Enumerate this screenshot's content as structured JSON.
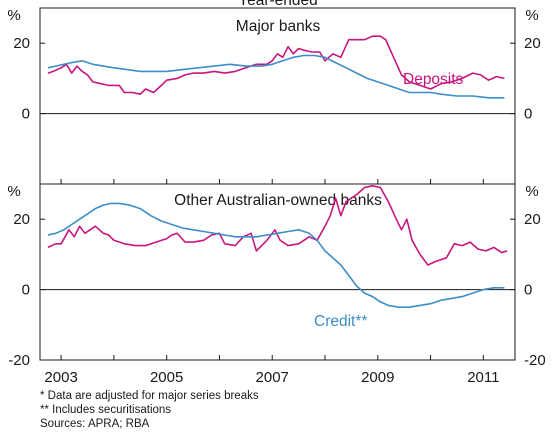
{
  "chart_data": [
    {
      "type": "line",
      "title": "Major banks",
      "header_text": "Year-ended",
      "ylabel": "%",
      "ylim": [
        -20,
        30
      ],
      "yticks": [
        0,
        20
      ],
      "xlim": [
        2002.6,
        2011.6
      ],
      "xticks": [
        2003,
        2005,
        2007,
        2009,
        2011
      ],
      "series": [
        {
          "name": "Deposits",
          "color": "#c8157f",
          "points": [
            [
              2002.75,
              11.5
            ],
            [
              2002.85,
              12
            ],
            [
              2003.0,
              13
            ],
            [
              2003.1,
              14
            ],
            [
              2003.2,
              11.5
            ],
            [
              2003.3,
              13.5
            ],
            [
              2003.4,
              12
            ],
            [
              2003.5,
              11
            ],
            [
              2003.6,
              9
            ],
            [
              2003.75,
              8.5
            ],
            [
              2003.9,
              8
            ],
            [
              2004.0,
              8
            ],
            [
              2004.1,
              8
            ],
            [
              2004.2,
              6
            ],
            [
              2004.35,
              6
            ],
            [
              2004.5,
              5.5
            ],
            [
              2004.6,
              7
            ],
            [
              2004.75,
              6
            ],
            [
              2004.9,
              8
            ],
            [
              2005.0,
              9.5
            ],
            [
              2005.2,
              10
            ],
            [
              2005.35,
              11
            ],
            [
              2005.5,
              11.5
            ],
            [
              2005.7,
              11.5
            ],
            [
              2005.9,
              12
            ],
            [
              2006.1,
              11.5
            ],
            [
              2006.3,
              12
            ],
            [
              2006.5,
              13
            ],
            [
              2006.7,
              14
            ],
            [
              2006.9,
              14
            ],
            [
              2007.0,
              15
            ],
            [
              2007.1,
              17
            ],
            [
              2007.2,
              16
            ],
            [
              2007.3,
              19
            ],
            [
              2007.4,
              17
            ],
            [
              2007.5,
              18.5
            ],
            [
              2007.6,
              18
            ],
            [
              2007.75,
              17.5
            ],
            [
              2007.9,
              17.5
            ],
            [
              2008.0,
              15
            ],
            [
              2008.15,
              17
            ],
            [
              2008.3,
              16
            ],
            [
              2008.45,
              21
            ],
            [
              2008.6,
              21
            ],
            [
              2008.75,
              21
            ],
            [
              2008.9,
              22
            ],
            [
              2009.05,
              22
            ],
            [
              2009.15,
              21
            ],
            [
              2009.3,
              16
            ],
            [
              2009.45,
              11
            ],
            [
              2009.6,
              9
            ],
            [
              2009.8,
              8
            ],
            [
              2010.0,
              7
            ],
            [
              2010.2,
              8.5
            ],
            [
              2010.4,
              9
            ],
            [
              2010.6,
              10
            ],
            [
              2010.8,
              11.5
            ],
            [
              2010.95,
              11
            ],
            [
              2011.1,
              9.5
            ],
            [
              2011.25,
              10.5
            ],
            [
              2011.4,
              10
            ]
          ]
        },
        {
          "name": "Credit",
          "color": "#3c8dc8",
          "points": [
            [
              2002.75,
              13
            ],
            [
              2002.9,
              13.5
            ],
            [
              2003.05,
              14
            ],
            [
              2003.2,
              14.5
            ],
            [
              2003.4,
              15
            ],
            [
              2003.6,
              14
            ],
            [
              2003.8,
              13.5
            ],
            [
              2004.0,
              13
            ],
            [
              2004.25,
              12.5
            ],
            [
              2004.5,
              12
            ],
            [
              2004.75,
              12
            ],
            [
              2005.0,
              12
            ],
            [
              2005.3,
              12.5
            ],
            [
              2005.6,
              13
            ],
            [
              2005.9,
              13.5
            ],
            [
              2006.2,
              14
            ],
            [
              2006.5,
              13.5
            ],
            [
              2006.8,
              13.5
            ],
            [
              2007.0,
              14
            ],
            [
              2007.2,
              15
            ],
            [
              2007.4,
              16
            ],
            [
              2007.6,
              16.5
            ],
            [
              2007.8,
              16.5
            ],
            [
              2008.0,
              16
            ],
            [
              2008.2,
              14.5
            ],
            [
              2008.4,
              13
            ],
            [
              2008.6,
              11.5
            ],
            [
              2008.8,
              10
            ],
            [
              2009.0,
              9
            ],
            [
              2009.2,
              8
            ],
            [
              2009.4,
              7
            ],
            [
              2009.6,
              6
            ],
            [
              2009.8,
              6
            ],
            [
              2010.0,
              6
            ],
            [
              2010.2,
              5.5
            ],
            [
              2010.5,
              5
            ],
            [
              2010.8,
              5
            ],
            [
              2011.1,
              4.5
            ],
            [
              2011.4,
              4.5
            ]
          ]
        }
      ]
    },
    {
      "type": "line",
      "title": "Other Australian-owned banks",
      "ylabel": "%",
      "ylim": [
        -20,
        30
      ],
      "yticks": [
        -20,
        0,
        20
      ],
      "xlim": [
        2002.6,
        2011.6
      ],
      "xticks": [
        2003,
        2005,
        2007,
        2009,
        2011
      ],
      "series": [
        {
          "name": "Deposits",
          "color": "#c8157f",
          "points": [
            [
              2002.75,
              12
            ],
            [
              2002.9,
              13
            ],
            [
              2003.0,
              13
            ],
            [
              2003.15,
              17
            ],
            [
              2003.25,
              15
            ],
            [
              2003.35,
              18
            ],
            [
              2003.45,
              16
            ],
            [
              2003.55,
              17
            ],
            [
              2003.65,
              18
            ],
            [
              2003.8,
              16
            ],
            [
              2003.9,
              15.5
            ],
            [
              2004.0,
              14
            ],
            [
              2004.2,
              13
            ],
            [
              2004.4,
              12.5
            ],
            [
              2004.6,
              12.5
            ],
            [
              2004.8,
              13.5
            ],
            [
              2005.0,
              14.5
            ],
            [
              2005.1,
              15.5
            ],
            [
              2005.2,
              16
            ],
            [
              2005.35,
              13.5
            ],
            [
              2005.5,
              13.5
            ],
            [
              2005.7,
              14
            ],
            [
              2005.85,
              15.5
            ],
            [
              2006.0,
              16
            ],
            [
              2006.1,
              13
            ],
            [
              2006.3,
              12.5
            ],
            [
              2006.45,
              15
            ],
            [
              2006.6,
              16
            ],
            [
              2006.7,
              11
            ],
            [
              2006.9,
              14
            ],
            [
              2007.05,
              17
            ],
            [
              2007.15,
              14
            ],
            [
              2007.3,
              12.5
            ],
            [
              2007.5,
              13
            ],
            [
              2007.7,
              15
            ],
            [
              2007.85,
              14
            ],
            [
              2008.0,
              18
            ],
            [
              2008.1,
              21
            ],
            [
              2008.2,
              26
            ],
            [
              2008.3,
              21
            ],
            [
              2008.4,
              25
            ],
            [
              2008.5,
              26
            ],
            [
              2008.6,
              27
            ],
            [
              2008.75,
              29
            ],
            [
              2008.9,
              29.5
            ],
            [
              2009.05,
              29
            ],
            [
              2009.2,
              25
            ],
            [
              2009.35,
              20
            ],
            [
              2009.45,
              17
            ],
            [
              2009.55,
              20
            ],
            [
              2009.65,
              14
            ],
            [
              2009.8,
              10
            ],
            [
              2009.95,
              7
            ],
            [
              2010.1,
              8
            ],
            [
              2010.3,
              9
            ],
            [
              2010.45,
              13
            ],
            [
              2010.6,
              12.5
            ],
            [
              2010.75,
              13.5
            ],
            [
              2010.9,
              11.5
            ],
            [
              2011.05,
              11
            ],
            [
              2011.2,
              12
            ],
            [
              2011.35,
              10.5
            ],
            [
              2011.45,
              11
            ]
          ]
        },
        {
          "name": "Credit",
          "color": "#3c8dc8",
          "points": [
            [
              2002.75,
              15.5
            ],
            [
              2002.9,
              16
            ],
            [
              2003.05,
              17
            ],
            [
              2003.2,
              18.5
            ],
            [
              2003.35,
              20
            ],
            [
              2003.5,
              21.5
            ],
            [
              2003.65,
              23
            ],
            [
              2003.8,
              24
            ],
            [
              2003.95,
              24.5
            ],
            [
              2004.1,
              24.5
            ],
            [
              2004.3,
              24
            ],
            [
              2004.5,
              23
            ],
            [
              2004.7,
              21
            ],
            [
              2004.9,
              19.5
            ],
            [
              2005.1,
              18.5
            ],
            [
              2005.3,
              17.5
            ],
            [
              2005.5,
              17
            ],
            [
              2005.7,
              16.5
            ],
            [
              2005.9,
              16
            ],
            [
              2006.1,
              15.5
            ],
            [
              2006.3,
              15
            ],
            [
              2006.5,
              15
            ],
            [
              2006.7,
              15
            ],
            [
              2006.9,
              15.5
            ],
            [
              2007.1,
              16
            ],
            [
              2007.3,
              16.5
            ],
            [
              2007.5,
              17
            ],
            [
              2007.7,
              16
            ],
            [
              2007.85,
              14
            ],
            [
              2008.0,
              11
            ],
            [
              2008.15,
              9
            ],
            [
              2008.3,
              7
            ],
            [
              2008.45,
              4
            ],
            [
              2008.6,
              1
            ],
            [
              2008.75,
              -1
            ],
            [
              2008.9,
              -2
            ],
            [
              2009.05,
              -3.5
            ],
            [
              2009.2,
              -4.5
            ],
            [
              2009.4,
              -5
            ],
            [
              2009.6,
              -5
            ],
            [
              2009.8,
              -4.5
            ],
            [
              2010.0,
              -4
            ],
            [
              2010.2,
              -3
            ],
            [
              2010.4,
              -2.5
            ],
            [
              2010.6,
              -2
            ],
            [
              2010.8,
              -1
            ],
            [
              2011.0,
              0
            ],
            [
              2011.2,
              0.5
            ],
            [
              2011.4,
              0.5
            ]
          ]
        }
      ]
    }
  ],
  "series_labels": {
    "deposits": "Deposits",
    "credit": "Credit**"
  },
  "notes": {
    "note1": "*   Data are adjusted for major series breaks",
    "note2": "** Includes securitisations",
    "sources": "Sources: APRA; RBA"
  }
}
